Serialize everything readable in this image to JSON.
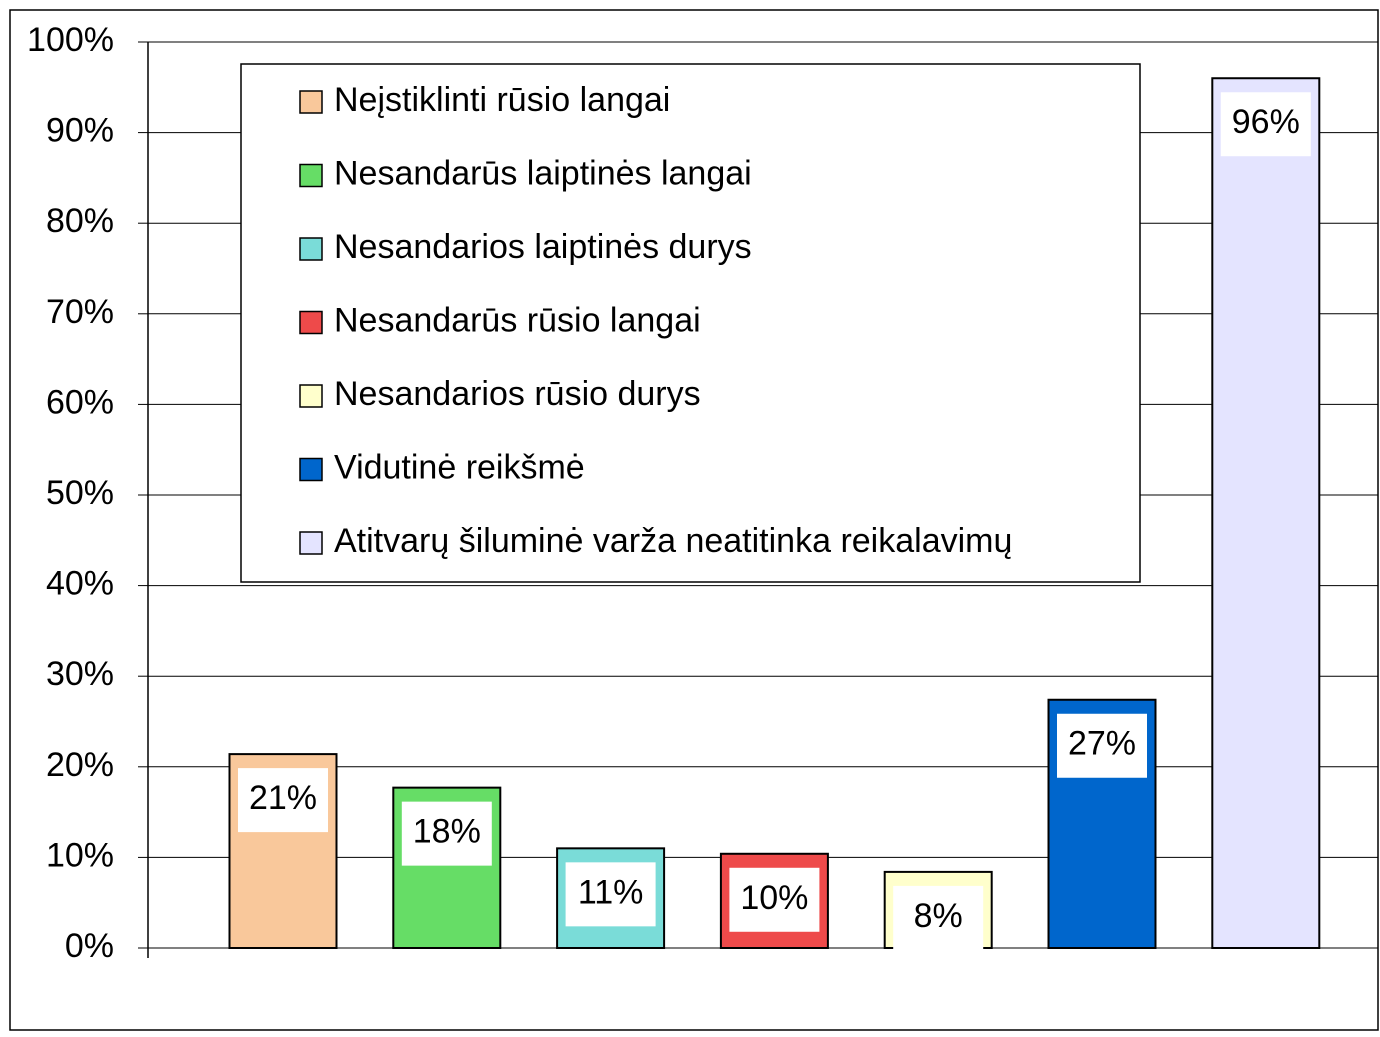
{
  "chart_data": {
    "type": "bar",
    "series": [
      {
        "name": "Neįstiklinti rūsio langai",
        "color": "#f9c89b",
        "values": [
          21.4
        ],
        "value_labels": [
          "21%"
        ]
      },
      {
        "name": "Nesandarūs laiptinės langai",
        "color": "#66dd66",
        "values": [
          17.7
        ],
        "value_labels": [
          "18%"
        ]
      },
      {
        "name": "Nesandarios laiptinės durys",
        "color": "#7adcd8",
        "values": [
          11.0
        ],
        "value_labels": [
          "11%"
        ]
      },
      {
        "name": "Nesandarūs rūsio langai",
        "color": "#ee4a4a",
        "values": [
          10.4
        ],
        "value_labels": [
          "10%"
        ]
      },
      {
        "name": "Nesandarios rūsio durys",
        "color": "#ffffcc",
        "values": [
          8.4
        ],
        "value_labels": [
          "8%"
        ]
      },
      {
        "name": "Vidutinė reikšmė",
        "color": "#0066cc",
        "values": [
          27.4
        ],
        "value_labels": [
          "27%"
        ]
      },
      {
        "name": "Atitvarų šiluminė varža neatitinka reikalavimų",
        "color": "#e4e4ff",
        "values": [
          96.0
        ],
        "value_labels": [
          "96%"
        ]
      }
    ],
    "ylim": [
      0,
      100
    ],
    "yticks": [
      {
        "value": 0,
        "label": "0%"
      },
      {
        "value": 10,
        "label": "10%"
      },
      {
        "value": 20,
        "label": "20%"
      },
      {
        "value": 30,
        "label": "30%"
      },
      {
        "value": 40,
        "label": "40%"
      },
      {
        "value": 50,
        "label": "50%"
      },
      {
        "value": 60,
        "label": "60%"
      },
      {
        "value": 70,
        "label": "70%"
      },
      {
        "value": 80,
        "label": "80%"
      },
      {
        "value": 90,
        "label": "90%"
      },
      {
        "value": 100,
        "label": "100%"
      }
    ],
    "grid": true,
    "legend": "top"
  }
}
